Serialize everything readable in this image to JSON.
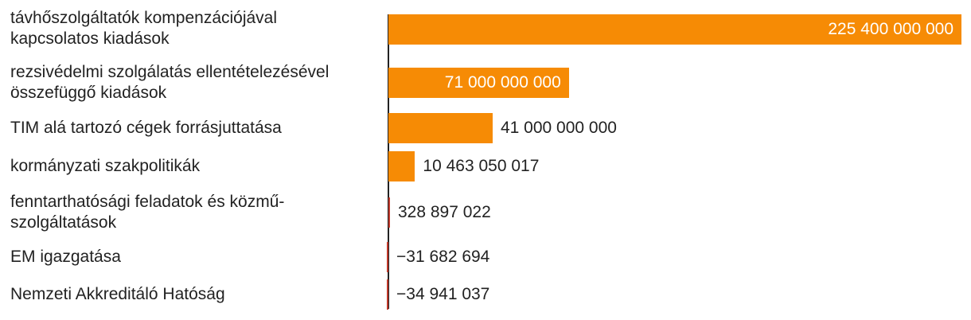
{
  "chart_data": {
    "type": "bar",
    "orientation": "horizontal",
    "categories": [
      "távhőszolgáltatók kompenzációjával kapcsolatos kiadások",
      "rezsivédelmi szolgálatás ellentételezésével összefüggő kiadások",
      "TIM alá tartozó cégek forrásjuttatása",
      "kormányzati szakpolitikák",
      "fenntarthatósági feladatok és közmű-szolgáltatások",
      "EM igazgatása",
      "Nemzeti Akkreditáló Hatóság"
    ],
    "values": [
      225400000000,
      71000000000,
      41000000000,
      10463050017,
      328897022,
      -31682694,
      -34941037
    ],
    "value_labels": [
      "225 400 000 000",
      "71 000 000 000",
      "41 000 000 000",
      "10 463 050 017",
      "328 897 022",
      "−31 682 694",
      "−34 941 037"
    ],
    "title": "",
    "xlabel": "",
    "ylabel": "",
    "xlim": [
      0,
      225400000000
    ],
    "grid": false,
    "legend": "none",
    "bar_color": "#f68b05",
    "negative_color": "#c0392b"
  }
}
